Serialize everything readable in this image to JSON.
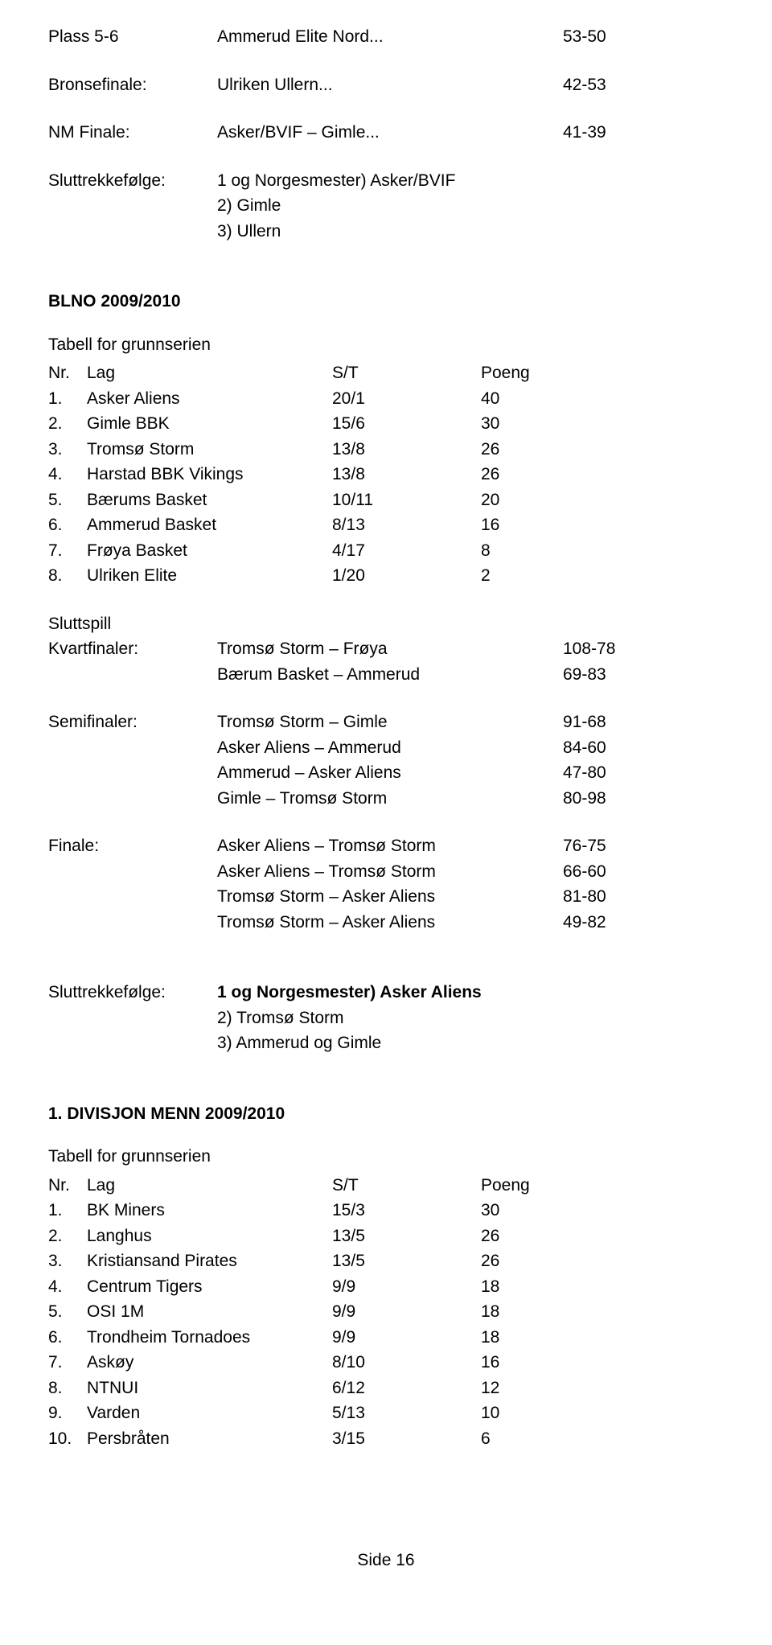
{
  "top_results": [
    {
      "label": "Plass 5-6",
      "match": "Ammerud Elite Nord...",
      "score": "53-50"
    },
    {
      "label": "Bronsefinale:",
      "match": "Ulriken Ullern...",
      "score": "42-53"
    },
    {
      "label": "NM Finale:",
      "match": "Asker/BVIF – Gimle...",
      "score": "41-39"
    }
  ],
  "slutt1": {
    "label": "Sluttrekkefølge:",
    "lines": [
      "1 og Norgesmester) Asker/BVIF",
      "2) Gimle",
      "3) Ullern"
    ]
  },
  "blno": {
    "title": "BLNO 2009/2010",
    "subtitle": "Tabell for grunnserien",
    "header": {
      "nr": "Nr.",
      "lag": "Lag",
      "st": "S/T",
      "poeng": "Poeng"
    },
    "rows": [
      {
        "nr": "1.",
        "lag": "Asker Aliens",
        "st": "20/1",
        "poeng": "40"
      },
      {
        "nr": "2.",
        "lag": "Gimle BBK",
        "st": "15/6",
        "poeng": "30"
      },
      {
        "nr": "3.",
        "lag": "Tromsø Storm",
        "st": "13/8",
        "poeng": "26"
      },
      {
        "nr": "4.",
        "lag": "Harstad BBK Vikings",
        "st": "13/8",
        "poeng": "26"
      },
      {
        "nr": "5.",
        "lag": "Bærums Basket",
        "st": "10/11",
        "poeng": "20"
      },
      {
        "nr": "6.",
        "lag": "Ammerud Basket",
        "st": "8/13",
        "poeng": "16"
      },
      {
        "nr": "7.",
        "lag": "Frøya Basket",
        "st": "4/17",
        "poeng": "8"
      },
      {
        "nr": "8.",
        "lag": "Ulriken Elite",
        "st": "1/20",
        "poeng": "2"
      }
    ]
  },
  "playoff": {
    "sluttspill_label": "Sluttspill",
    "groups": [
      {
        "label": "Kvartfinaler:",
        "matches": [
          {
            "m": "Tromsø Storm – Frøya",
            "s": "108-78"
          },
          {
            "m": "Bærum Basket – Ammerud",
            "s": "69-83"
          }
        ]
      },
      {
        "label": "Semifinaler:",
        "matches": [
          {
            "m": "Tromsø Storm – Gimle",
            "s": "91-68"
          },
          {
            "m": "Asker Aliens – Ammerud",
            "s": "84-60"
          },
          {
            "m": "Ammerud – Asker Aliens",
            "s": "47-80"
          },
          {
            "m": "Gimle – Tromsø Storm",
            "s": "80-98"
          }
        ]
      },
      {
        "label": "Finale:",
        "matches": [
          {
            "m": "Asker Aliens – Tromsø Storm",
            "s": "76-75"
          },
          {
            "m": "Asker Aliens – Tromsø Storm",
            "s": "66-60"
          },
          {
            "m": "Tromsø Storm – Asker Aliens",
            "s": "81-80"
          },
          {
            "m": "Tromsø Storm – Asker Aliens",
            "s": "49-82"
          }
        ]
      }
    ]
  },
  "slutt2": {
    "label": "Sluttrekkefølge:",
    "bold_line": "1 og Norgesmester) Asker Aliens",
    "lines": [
      "2) Tromsø Storm",
      "3) Ammerud og Gimle"
    ]
  },
  "div1": {
    "title": "1. DIVISJON MENN 2009/2010",
    "subtitle": "Tabell for grunnserien",
    "header": {
      "nr": "Nr.",
      "lag": "Lag",
      "st": "S/T",
      "poeng": "Poeng"
    },
    "rows": [
      {
        "nr": "1.",
        "lag": "BK Miners",
        "st": "15/3",
        "poeng": "30"
      },
      {
        "nr": "2.",
        "lag": "Langhus",
        "st": "13/5",
        "poeng": "26"
      },
      {
        "nr": "3.",
        "lag": "Kristiansand Pirates",
        "st": "13/5",
        "poeng": "26"
      },
      {
        "nr": "4.",
        "lag": "Centrum Tigers",
        "st": "9/9",
        "poeng": "18"
      },
      {
        "nr": "5.",
        "lag": "OSI 1M",
        "st": "9/9",
        "poeng": "18"
      },
      {
        "nr": "6.",
        "lag": "Trondheim Tornadoes",
        "st": "9/9",
        "poeng": "18"
      },
      {
        "nr": "7.",
        "lag": "Askøy",
        "st": "8/10",
        "poeng": "16"
      },
      {
        "nr": "8.",
        "lag": "NTNUI",
        "st": "6/12",
        "poeng": "12"
      },
      {
        "nr": "9.",
        "lag": "Varden",
        "st": "5/13",
        "poeng": "10"
      },
      {
        "nr": "10.",
        "lag": "Persbråten",
        "st": "3/15",
        "poeng": "6"
      }
    ]
  },
  "footer": "Side 16"
}
